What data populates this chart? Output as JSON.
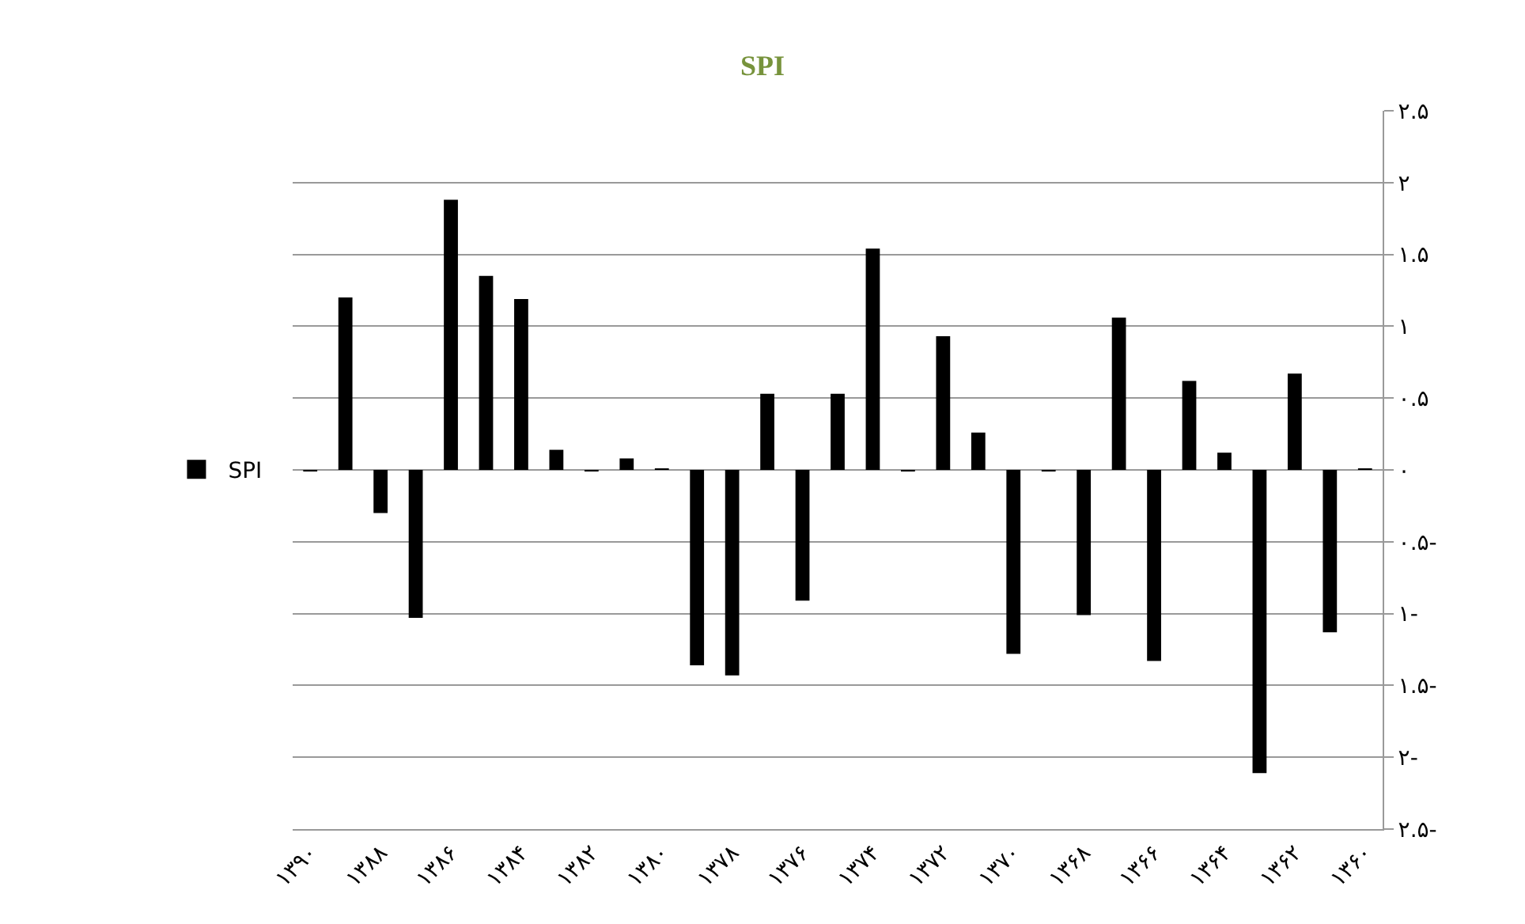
{
  "chart_data": {
    "type": "bar",
    "title": "SPI",
    "categories": [
      "۱۳۹۰",
      null,
      "۱۳۸۸",
      null,
      "۱۳۸۶",
      null,
      "۱۳۸۴",
      null,
      "۱۳۸۲",
      null,
      "۱۳۸۰",
      null,
      "۱۳۷۸",
      null,
      "۱۳۷۶",
      null,
      "۱۳۷۴",
      null,
      "۱۳۷۲",
      null,
      "۱۳۷۰",
      null,
      "۱۳۶۸",
      null,
      "۱۳۶۶",
      null,
      "۱۳۶۴",
      null,
      "۱۳۶۲",
      null,
      "۱۳۶۰"
    ],
    "series": [
      {
        "name": "SPI",
        "color": "#000000",
        "values": [
          -0.01,
          1.2,
          -0.3,
          -1.03,
          1.88,
          1.35,
          1.19,
          0.14,
          -0.01,
          0.08,
          0.01,
          -1.36,
          -1.43,
          0.53,
          -0.91,
          0.53,
          1.54,
          -0.01,
          0.93,
          0.26,
          -1.28,
          -0.01,
          -1.01,
          1.06,
          -1.33,
          0.62,
          0.12,
          -2.11,
          0.67,
          -1.13,
          0.01
        ]
      }
    ],
    "ylim": [
      -2.5,
      2.5
    ],
    "yticks": [
      {
        "value": 2.5,
        "label": "۲.۵"
      },
      {
        "value": 2,
        "label": "۲"
      },
      {
        "value": 1.5,
        "label": "۱.۵"
      },
      {
        "value": 1,
        "label": "۱"
      },
      {
        "value": 0.5,
        "label": "۰.۵"
      },
      {
        "value": 0,
        "label": "۰"
      },
      {
        "value": -0.5,
        "label": "۰.۵-"
      },
      {
        "value": -1,
        "label": "۱-"
      },
      {
        "value": -1.5,
        "label": "۱.۵-"
      },
      {
        "value": -2,
        "label": "۲-"
      },
      {
        "value": -2.5,
        "label": "۲.۵-"
      }
    ],
    "grid": "y",
    "legend": "left"
  }
}
